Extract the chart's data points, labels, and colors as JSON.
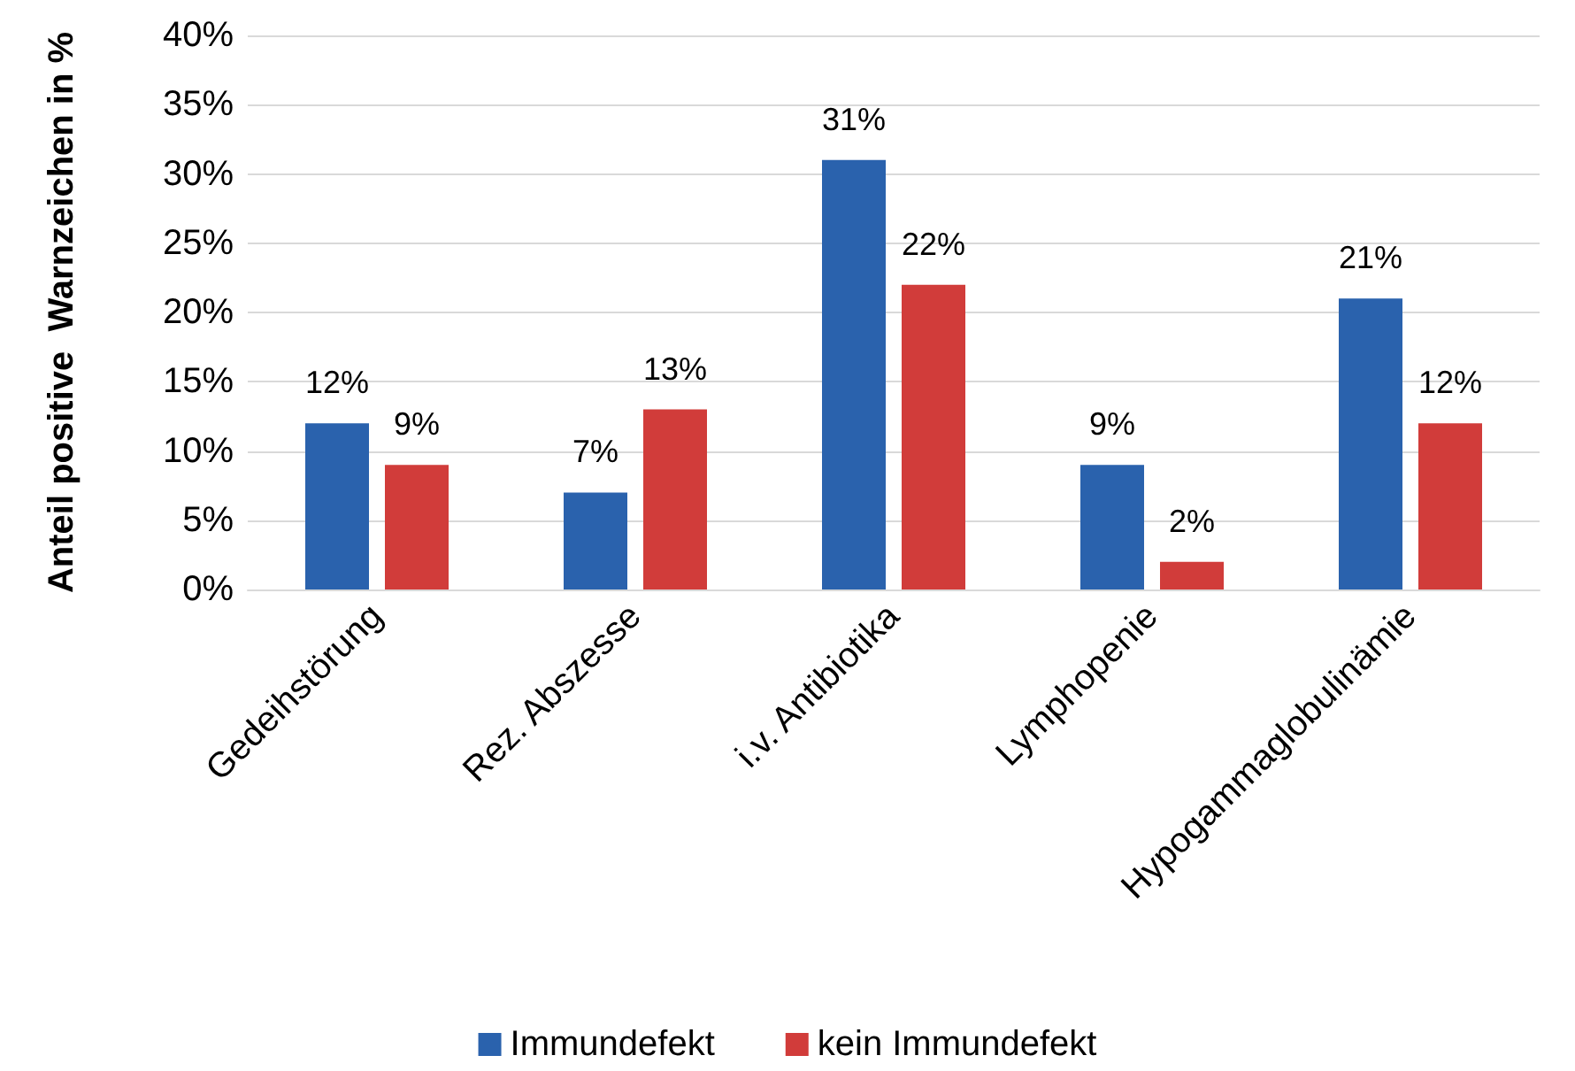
{
  "chart_data": {
    "type": "bar",
    "ylabel": "Anteil positive  Warnzeichen in %",
    "categories": [
      "Gedeihstörung",
      "Rez. Abszesse",
      "i.v. Antibiotika",
      "Lymphopenie",
      "Hypogammaglobulinämie"
    ],
    "series": [
      {
        "name": "Immundefekt",
        "color": "#2a62ad",
        "values": [
          12,
          7,
          31,
          9,
          21
        ],
        "value_labels": [
          "12%",
          "7%",
          "31%",
          "9%",
          "21%"
        ]
      },
      {
        "name": "kein Immundefekt",
        "color": "#d13c3a",
        "values": [
          9,
          13,
          22,
          2,
          12
        ],
        "value_labels": [
          "9%",
          "13%",
          "22%",
          "2%",
          "12%"
        ]
      }
    ],
    "ylim": [
      0,
      40
    ],
    "yticks": [
      {
        "value": 0,
        "label": "0%"
      },
      {
        "value": 5,
        "label": "5%"
      },
      {
        "value": 10,
        "label": "10%"
      },
      {
        "value": 15,
        "label": "15%"
      },
      {
        "value": 20,
        "label": "20%"
      },
      {
        "value": 25,
        "label": "25%"
      },
      {
        "value": 30,
        "label": "30%"
      },
      {
        "value": 35,
        "label": "35%"
      },
      {
        "value": 40,
        "label": "40%"
      }
    ],
    "grid": "y",
    "legend": "bottom"
  }
}
